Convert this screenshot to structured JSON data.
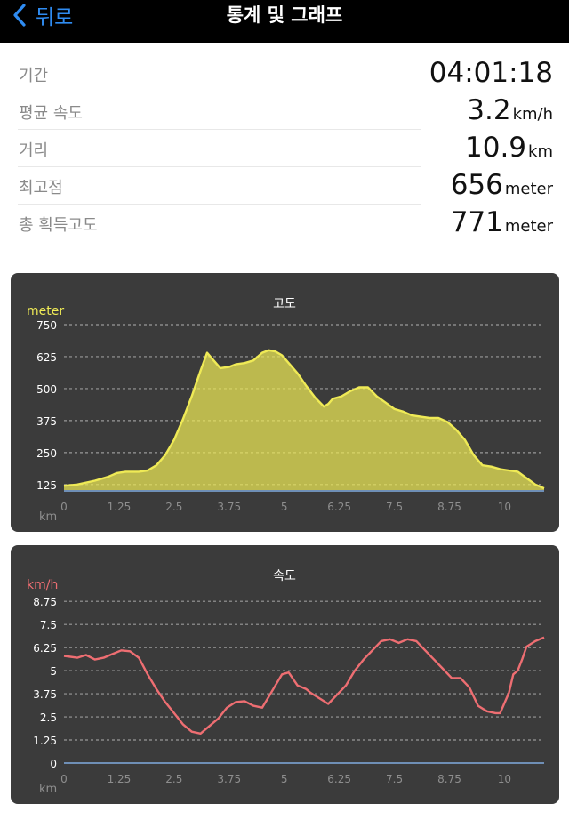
{
  "header": {
    "back_label": "뒤로",
    "title": "통계 및 그래프"
  },
  "stats": [
    {
      "label": "기간",
      "value": "04:01:18",
      "unit": ""
    },
    {
      "label": "평균 속도",
      "value": "3.2",
      "unit": "km/h"
    },
    {
      "label": "거리",
      "value": "10.9",
      "unit": "km"
    },
    {
      "label": "최고점",
      "value": "656",
      "unit": "meter"
    },
    {
      "label": "총 획득고도",
      "value": "771",
      "unit": "meter"
    }
  ],
  "chart_data": [
    {
      "type": "area",
      "title": "고도",
      "ylabel": "meter",
      "xlabel": "km",
      "xlim": [
        0,
        10.9
      ],
      "ylim": [
        100,
        750
      ],
      "yticks": [
        "125",
        "250",
        "375",
        "500",
        "625",
        "750"
      ],
      "xticks": [
        "0",
        "1.25",
        "2.5",
        "3.75",
        "5",
        "6.25",
        "7.5",
        "8.75",
        "10"
      ],
      "color": "#efea56",
      "grid": true,
      "x": [
        0,
        0.3,
        0.7,
        1.0,
        1.2,
        1.4,
        1.7,
        1.9,
        2.1,
        2.3,
        2.5,
        2.7,
        2.9,
        3.1,
        3.25,
        3.4,
        3.55,
        3.75,
        3.9,
        4.1,
        4.3,
        4.5,
        4.65,
        4.8,
        4.95,
        5.1,
        5.3,
        5.5,
        5.7,
        5.9,
        6.0,
        6.1,
        6.3,
        6.5,
        6.7,
        6.9,
        7.1,
        7.3,
        7.5,
        7.7,
        7.9,
        8.1,
        8.3,
        8.5,
        8.7,
        8.9,
        9.1,
        9.3,
        9.5,
        9.7,
        9.9,
        10.1,
        10.3,
        10.5,
        10.7,
        10.9
      ],
      "y": [
        120,
        125,
        140,
        155,
        170,
        175,
        175,
        180,
        200,
        240,
        300,
        380,
        470,
        570,
        640,
        610,
        580,
        585,
        595,
        600,
        610,
        640,
        650,
        645,
        630,
        600,
        560,
        510,
        465,
        430,
        440,
        460,
        470,
        490,
        505,
        505,
        470,
        445,
        420,
        410,
        395,
        390,
        385,
        385,
        370,
        340,
        300,
        240,
        200,
        195,
        185,
        180,
        175,
        150,
        125,
        110
      ],
      "y_units_note": ""
    },
    {
      "type": "line",
      "title": "속도",
      "ylabel": "km/h",
      "xlabel": "km",
      "xlim": [
        0,
        10.9
      ],
      "ylim": [
        0,
        9.0
      ],
      "yticks": [
        "0",
        "1.25",
        "2.5",
        "3.75",
        "5",
        "6.25",
        "7.5",
        "8.75"
      ],
      "xticks": [
        "0",
        "1.25",
        "2.5",
        "3.75",
        "5",
        "6.25",
        "7.5",
        "8.75",
        "10"
      ],
      "color": "#ee6e72",
      "grid": true,
      "x": [
        0,
        0.3,
        0.5,
        0.7,
        0.9,
        1.1,
        1.3,
        1.5,
        1.7,
        1.9,
        2.1,
        2.3,
        2.5,
        2.7,
        2.9,
        3.1,
        3.3,
        3.5,
        3.7,
        3.9,
        4.1,
        4.3,
        4.5,
        4.65,
        4.8,
        4.95,
        5.1,
        5.3,
        5.5,
        5.6,
        5.8,
        6.0,
        6.2,
        6.4,
        6.6,
        6.8,
        7.0,
        7.2,
        7.4,
        7.6,
        7.8,
        8.0,
        8.2,
        8.4,
        8.6,
        8.8,
        9.0,
        9.2,
        9.4,
        9.6,
        9.8,
        9.9,
        10.1,
        10.2,
        10.3,
        10.4,
        10.5,
        10.7,
        10.9
      ],
      "y": [
        5.8,
        5.7,
        5.85,
        5.6,
        5.7,
        5.9,
        6.1,
        6.05,
        5.7,
        4.8,
        4.0,
        3.3,
        2.7,
        2.1,
        1.7,
        1.6,
        2.0,
        2.4,
        3.0,
        3.3,
        3.35,
        3.1,
        3.0,
        3.6,
        4.2,
        4.8,
        4.9,
        4.2,
        4.0,
        3.8,
        3.5,
        3.2,
        3.7,
        4.2,
        5.0,
        5.6,
        6.1,
        6.6,
        6.7,
        6.5,
        6.7,
        6.6,
        6.1,
        5.6,
        5.1,
        4.6,
        4.6,
        4.1,
        3.1,
        2.8,
        2.7,
        2.7,
        3.8,
        4.8,
        5.0,
        5.6,
        6.3,
        6.6,
        6.8
      ]
    }
  ]
}
